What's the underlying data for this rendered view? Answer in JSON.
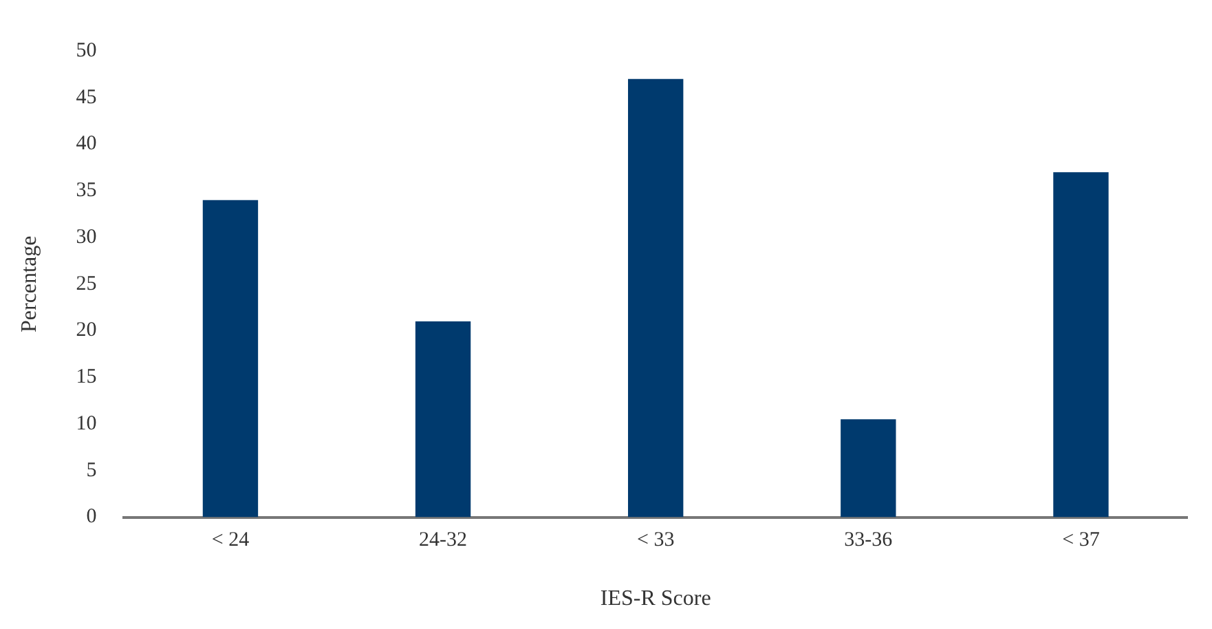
{
  "chart_data": {
    "type": "bar",
    "xlabel": "IES-R Score",
    "ylabel": "Percentage",
    "categories": [
      "< 24",
      "24-32",
      "< 33",
      "33-36",
      "< 37"
    ],
    "values": [
      34,
      21,
      47,
      10.5,
      37
    ],
    "color": "#003a6e",
    "ylim": [
      0,
      50
    ],
    "yticks": [
      0,
      5,
      10,
      15,
      20,
      25,
      30,
      35,
      40,
      45,
      50
    ],
    "grid": false,
    "legend": false
  }
}
